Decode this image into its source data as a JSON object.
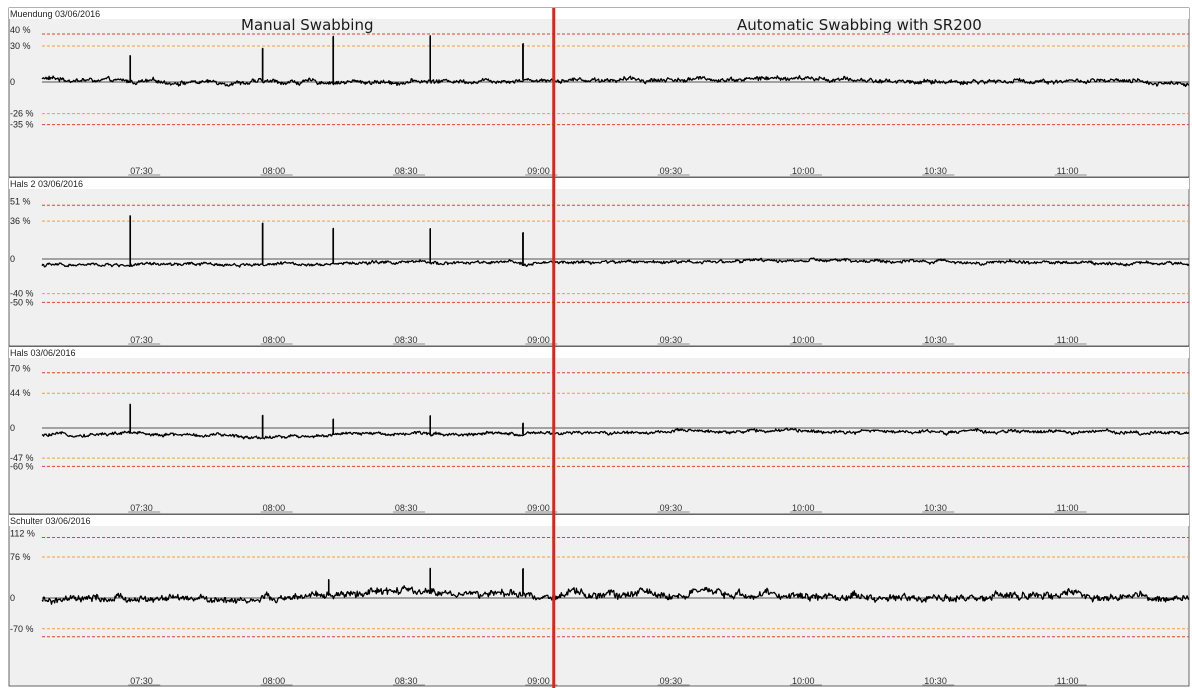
{
  "annotations": {
    "manual": "Manual Swabbing",
    "automatic": "Automatic Swabbing with SR200"
  },
  "colors": {
    "panel_bg": "#f0f0f0",
    "trace": "#000000",
    "outer_limit": "#e8412c",
    "inner_limit": "#f0a030",
    "divider": "#e0241c"
  },
  "divider_time": "09:06",
  "chart_data": [
    {
      "type": "line",
      "title": "Muendung 03/06/2016",
      "y_tick_labels": [
        "40 %",
        "30 %",
        "0",
        "-26 %",
        "-35 %"
      ],
      "limits": {
        "outer_upper": 40,
        "inner_upper": 30,
        "inner_lower": -26,
        "outer_lower": -35
      },
      "ylim": [
        -60,
        60
      ],
      "x_tick_labels": [
        "07:30",
        "08:00",
        "08:30",
        "09:00",
        "09:30",
        "10:00",
        "10:30",
        "11:00"
      ],
      "xlim": [
        "07:10",
        "11:30"
      ],
      "grid": false,
      "series": [
        {
          "baseline": [
            [
              "07:10",
              3
            ],
            [
              "07:30",
              0
            ],
            [
              "08:00",
              0
            ],
            [
              "08:30",
              0
            ],
            [
              "09:00",
              2
            ],
            [
              "09:30",
              2
            ],
            [
              "10:00",
              3
            ],
            [
              "10:30",
              0
            ],
            [
              "11:00",
              1
            ],
            [
              "11:30",
              -1
            ]
          ],
          "noise": 2.5,
          "spikes": [
            [
              "07:30",
              22
            ],
            [
              "08:00",
              28
            ],
            [
              "08:16",
              38
            ],
            [
              "08:38",
              38
            ],
            [
              "08:59",
              30
            ]
          ]
        }
      ]
    },
    {
      "type": "line",
      "title": "Hals 2  03/06/2016",
      "y_tick_labels": [
        "51 %",
        "36 %",
        "0",
        "-40 %",
        "-50 %"
      ],
      "limits": {
        "outer_upper": 51,
        "inner_upper": 36,
        "inner_lower": -40,
        "outer_lower": -50
      },
      "ylim": [
        -75,
        75
      ],
      "x_tick_labels": [
        "07:30",
        "08:00",
        "08:30",
        "09:00",
        "09:30",
        "10:00",
        "10:30",
        "11:00"
      ],
      "xlim": [
        "07:10",
        "11:30"
      ],
      "grid": false,
      "series": [
        {
          "baseline": [
            [
              "07:10",
              -7
            ],
            [
              "07:30",
              -7
            ],
            [
              "08:00",
              -6
            ],
            [
              "08:30",
              -4
            ],
            [
              "09:00",
              -5
            ],
            [
              "09:30",
              -3
            ],
            [
              "10:00",
              -2
            ],
            [
              "10:30",
              -3
            ],
            [
              "11:00",
              -4
            ],
            [
              "11:30",
              -5
            ]
          ],
          "noise": 2.5,
          "spikes": [
            [
              "07:30",
              48
            ],
            [
              "08:00",
              40
            ],
            [
              "08:16",
              34
            ],
            [
              "08:38",
              33
            ],
            [
              "08:59",
              30
            ]
          ]
        }
      ]
    },
    {
      "type": "line",
      "title": "Hals  03/06/2016",
      "y_tick_labels": [
        "70 %",
        "44 %",
        "0",
        "-47 %",
        "-60 %"
      ],
      "limits": {
        "outer_upper": 70,
        "inner_upper": 44,
        "inner_lower": -47,
        "outer_lower": -60
      },
      "ylim": [
        -100,
        100
      ],
      "x_tick_labels": [
        "07:30",
        "08:00",
        "08:30",
        "09:00",
        "09:30",
        "10:00",
        "10:30",
        "11:00"
      ],
      "xlim": [
        "07:10",
        "11:30"
      ],
      "grid": false,
      "series": [
        {
          "baseline": [
            [
              "07:10",
              -12
            ],
            [
              "07:30",
              -8
            ],
            [
              "08:00",
              -14
            ],
            [
              "08:30",
              -8
            ],
            [
              "09:00",
              -10
            ],
            [
              "09:30",
              -6
            ],
            [
              "10:00",
              -4
            ],
            [
              "10:30",
              -6
            ],
            [
              "11:00",
              -6
            ],
            [
              "11:30",
              -7
            ]
          ],
          "noise": 3.5,
          "spikes": [
            [
              "07:30",
              38
            ],
            [
              "08:00",
              30
            ],
            [
              "08:16",
              22
            ],
            [
              "08:38",
              24
            ],
            [
              "08:59",
              16
            ]
          ]
        }
      ]
    },
    {
      "type": "line",
      "title": "Schulter  03/06/2016",
      "y_tick_labels": [
        "112 %",
        "76 %",
        "0",
        "-70 %"
      ],
      "limits": {
        "outer_upper": 112,
        "inner_upper": 76,
        "inner_lower": -70,
        "outer_lower": -88
      },
      "ylim": [
        -150,
        150
      ],
      "x_tick_labels": [
        "07:30",
        "08:00",
        "08:30",
        "09:00",
        "09:30",
        "10:00",
        "10:30",
        "11:00"
      ],
      "xlim": [
        "07:10",
        "11:30"
      ],
      "grid": false,
      "series": [
        {
          "baseline": [
            [
              "07:10",
              -8
            ],
            [
              "07:30",
              -3
            ],
            [
              "08:00",
              -4
            ],
            [
              "08:30",
              12
            ],
            [
              "09:00",
              4
            ],
            [
              "09:30",
              8
            ],
            [
              "10:00",
              4
            ],
            [
              "10:30",
              0
            ],
            [
              "11:00",
              4
            ],
            [
              "11:30",
              -5
            ]
          ],
          "noise": 10,
          "spikes": [
            [
              "08:15",
              30
            ],
            [
              "08:38",
              45
            ],
            [
              "08:59",
              50
            ]
          ]
        }
      ]
    }
  ]
}
